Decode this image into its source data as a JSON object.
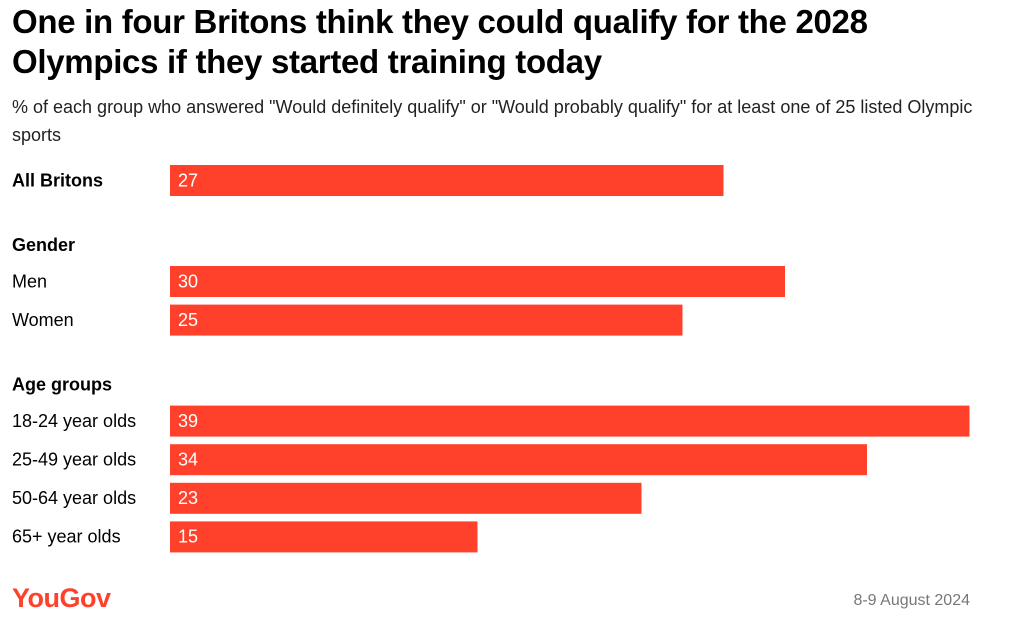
{
  "chart_data": {
    "type": "bar",
    "title": "One in four Britons think they could qualify for the 2028 Olympics if they started training today",
    "subtitle": "% of each group who answered \"Would definitely qualify\" or \"Would probably qualify\" for at least one of 25 listed Olympic sports",
    "color": "#ff412c",
    "groups": [
      {
        "categories": [
          "All Britons"
        ],
        "values": [
          27
        ]
      },
      {
        "name": "Gender",
        "categories": [
          "Men",
          "Women"
        ],
        "values": [
          30,
          25
        ]
      },
      {
        "name": "Age groups",
        "categories": [
          "18-24 year olds",
          "25-49 year olds",
          "50-64 year olds",
          "65+ year olds"
        ],
        "values": [
          39,
          34,
          23,
          15
        ]
      }
    ],
    "source": "YouGov",
    "date": "8-9 August 2024"
  }
}
